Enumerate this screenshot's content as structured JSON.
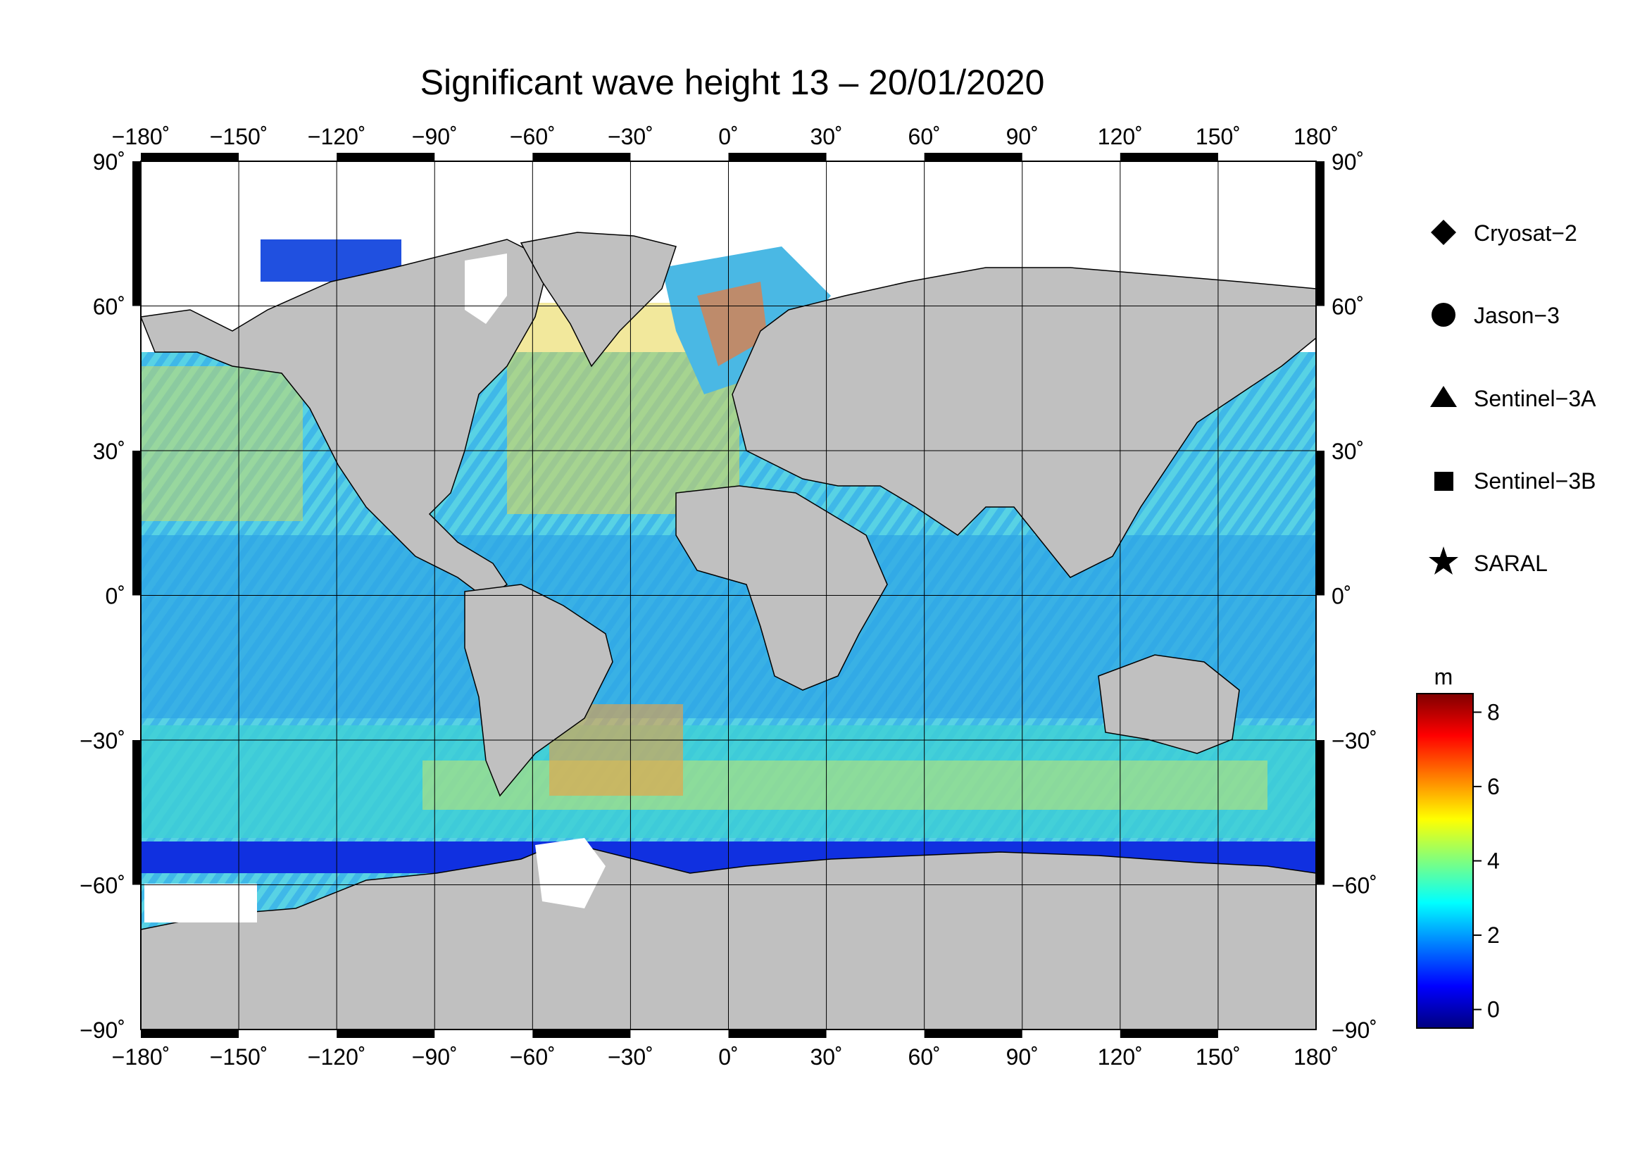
{
  "map": {
    "title": "Significant wave height 13 – 20/01/2020",
    "lon_ticks": [
      "−180˚",
      "−150˚",
      "−120˚",
      "−90˚",
      "−60˚",
      "−30˚",
      "0˚",
      "30˚",
      "60˚",
      "90˚",
      "120˚",
      "150˚",
      "180˚"
    ],
    "lat_ticks_left": [
      "90˚",
      "60˚",
      "30˚",
      "0˚",
      "−30˚",
      "−60˚",
      "−90˚"
    ],
    "lat_ticks_right": [
      "90˚",
      "60˚",
      "30˚",
      "0˚",
      "−30˚",
      "−60˚",
      "−90˚"
    ],
    "lon_values": [
      -180,
      -150,
      -120,
      -90,
      -60,
      -30,
      0,
      30,
      60,
      90,
      120,
      150,
      180
    ],
    "lat_values": [
      90,
      60,
      30,
      0,
      -30,
      -60,
      -90
    ],
    "land_color": "#c0c0c0",
    "ice_color": "#ffffff"
  },
  "legend": {
    "items": [
      {
        "label": "Cryosat−2",
        "symbol": "diamond"
      },
      {
        "label": "Jason−3",
        "symbol": "circle"
      },
      {
        "label": "Sentinel−3A",
        "symbol": "triangle"
      },
      {
        "label": "Sentinel−3B",
        "symbol": "square"
      },
      {
        "label": "SARAL",
        "symbol": "star"
      }
    ]
  },
  "colorbar": {
    "unit": "m",
    "min": -0.5,
    "max": 8.5,
    "ticks": [
      {
        "value": 0,
        "label": "0"
      },
      {
        "value": 2,
        "label": "2"
      },
      {
        "value": 4,
        "label": "4"
      },
      {
        "value": 6,
        "label": "6"
      },
      {
        "value": 8,
        "label": "8"
      }
    ],
    "colors": [
      "#00007f",
      "#0000ff",
      "#007fff",
      "#00ffff",
      "#7fff7f",
      "#ffff00",
      "#ff7f00",
      "#ff0000",
      "#7f0000"
    ]
  }
}
